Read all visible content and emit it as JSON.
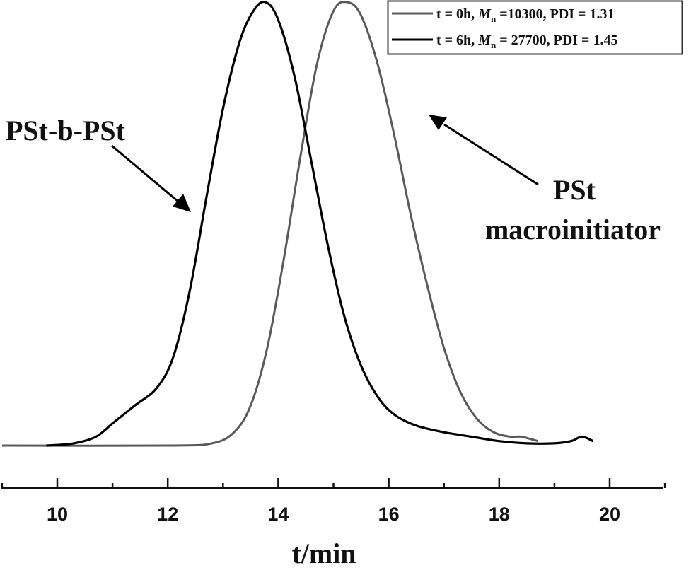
{
  "chart_data": {
    "type": "line",
    "title": "",
    "xlabel": "t/min",
    "ylabel": "",
    "xlim": [
      9,
      21
    ],
    "x_ticks": [
      10,
      12,
      14,
      16,
      18,
      20
    ],
    "x_tick_labels": [
      "10",
      "12",
      "14",
      "16",
      "18",
      "20"
    ],
    "y_axis_visible": false,
    "grid": false,
    "legend_position": "top-right",
    "series": [
      {
        "name": "t = 0h, Mn =10300, PDI = 1.31",
        "color": "#5a5a5a",
        "x": [
          9.0,
          12.0,
          12.8,
          13.2,
          13.5,
          13.8,
          14.1,
          14.4,
          14.7,
          15.0,
          15.25,
          15.5,
          15.8,
          16.1,
          16.4,
          16.7,
          17.0,
          17.3,
          17.6,
          17.9,
          18.2,
          18.4,
          18.7
        ],
        "y": [
          0.0,
          0.0,
          0.005,
          0.03,
          0.09,
          0.22,
          0.42,
          0.65,
          0.86,
          0.98,
          1.0,
          0.97,
          0.86,
          0.7,
          0.52,
          0.36,
          0.22,
          0.12,
          0.06,
          0.03,
          0.02,
          0.02,
          0.01
        ]
      },
      {
        "name": "t = 6h, Mn = 27700, PDI = 1.45",
        "color": "#000000",
        "x": [
          9.8,
          10.3,
          10.7,
          11.0,
          11.4,
          11.8,
          12.1,
          12.4,
          12.7,
          13.0,
          13.3,
          13.55,
          13.77,
          14.0,
          14.3,
          14.6,
          14.9,
          15.2,
          15.5,
          15.8,
          16.1,
          16.5,
          17.0,
          17.5,
          18.0,
          18.5,
          19.0,
          19.3,
          19.5,
          19.7
        ],
        "y": [
          0.0,
          0.005,
          0.02,
          0.05,
          0.09,
          0.13,
          0.2,
          0.35,
          0.56,
          0.76,
          0.91,
          0.98,
          1.0,
          0.96,
          0.83,
          0.64,
          0.45,
          0.29,
          0.18,
          0.11,
          0.07,
          0.045,
          0.03,
          0.02,
          0.01,
          0.005,
          0.005,
          0.01,
          0.02,
          0.01
        ]
      }
    ],
    "annotations": [
      {
        "text": "PSt-b-PSt",
        "arrow_to_series": "t = 6h"
      },
      {
        "text": "PSt macroinitiator",
        "arrow_to_series": "t = 0h"
      }
    ]
  },
  "labels": {
    "xlabel": "t/min",
    "annot_block": "PSt-b-PSt",
    "annot_macro_line1": "PSt",
    "annot_macro_line2": "macroinitiator"
  },
  "legend": {
    "items": [
      {
        "prefix": "t = 0h, ",
        "m": "M",
        "sub": "n",
        "suffix": " =10300, PDI = 1.31",
        "color": "#5a5a5a"
      },
      {
        "prefix": "t = 6h, ",
        "m": "M",
        "sub": "n",
        "suffix": " = 27700, PDI = 1.45",
        "color": "#000000"
      }
    ]
  }
}
